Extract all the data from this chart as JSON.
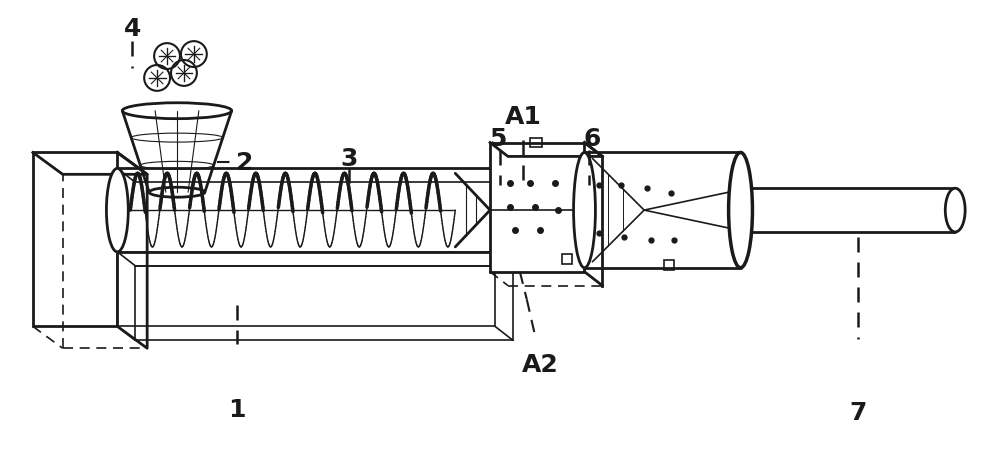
{
  "bg_color": "#ffffff",
  "line_color": "#1a1a1a",
  "figsize": [
    10.0,
    4.56
  ],
  "dpi": 100
}
